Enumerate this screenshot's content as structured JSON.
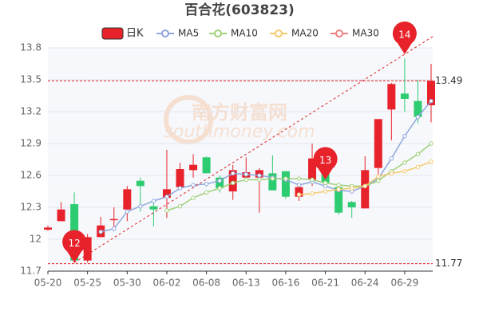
{
  "chart_data": {
    "type": "candlestick",
    "title": "百合花(603823)",
    "watermark": [
      "南方财富网",
      "southmoney.com"
    ],
    "categories": [
      "05-20",
      null,
      null,
      "05-25",
      null,
      null,
      "05-30",
      null,
      null,
      "06-02",
      null,
      null,
      "06-08",
      null,
      null,
      "06-13",
      null,
      null,
      "06-16",
      null,
      null,
      "06-21",
      null,
      null,
      "06-24",
      null,
      null,
      "06-29",
      null,
      null
    ],
    "candle_name": "日K",
    "up_color": "#e8222a",
    "down_color": "#2ecc71",
    "open": [
      12.09,
      12.17,
      12.33,
      11.8,
      12.02,
      12.18,
      12.28,
      12.55,
      12.31,
      12.39,
      12.49,
      12.65,
      12.77,
      12.58,
      12.45,
      12.58,
      12.58,
      12.62,
      12.64,
      12.4,
      12.56,
      12.62,
      12.49,
      12.35,
      12.29,
      12.67,
      13.22,
      13.37,
      13.3,
      13.26
    ],
    "close": [
      12.11,
      12.28,
      11.8,
      12.02,
      12.13,
      12.19,
      12.47,
      12.5,
      12.28,
      12.47,
      12.66,
      12.7,
      12.62,
      12.48,
      12.65,
      12.63,
      12.65,
      12.46,
      12.4,
      12.49,
      12.76,
      12.53,
      12.25,
      12.3,
      12.65,
      13.13,
      13.46,
      13.32,
      13.15,
      13.49
    ],
    "high": [
      12.13,
      12.35,
      12.44,
      12.05,
      12.21,
      12.3,
      12.5,
      12.58,
      12.35,
      12.84,
      12.72,
      12.8,
      12.78,
      12.6,
      12.7,
      12.77,
      12.67,
      12.79,
      12.64,
      12.52,
      12.9,
      12.67,
      12.53,
      12.36,
      12.78,
      13.13,
      13.47,
      13.7,
      13.5,
      13.65
    ],
    "low": [
      12.08,
      12.17,
      11.78,
      11.78,
      12.02,
      12.08,
      12.17,
      12.26,
      12.12,
      12.2,
      12.49,
      12.58,
      12.62,
      12.44,
      12.37,
      12.55,
      12.25,
      12.46,
      12.38,
      12.36,
      12.5,
      12.49,
      12.23,
      12.2,
      12.29,
      12.55,
      12.93,
      13.2,
      13.09,
      13.1
    ],
    "series": [
      {
        "name": "MA5",
        "color": "#8fa6dd",
        "values": [
          null,
          null,
          null,
          null,
          12.07,
          12.1,
          12.26,
          12.31,
          12.36,
          12.4,
          12.48,
          12.51,
          12.52,
          12.55,
          12.62,
          12.61,
          12.6,
          12.58,
          12.56,
          12.51,
          12.54,
          12.5,
          12.46,
          12.45,
          12.5,
          12.57,
          12.76,
          12.97,
          13.15,
          13.3
        ]
      },
      {
        "name": "MA10",
        "color": "#9fd07a",
        "values": [
          null,
          null,
          null,
          null,
          null,
          null,
          null,
          null,
          null,
          12.27,
          12.31,
          12.39,
          12.44,
          12.48,
          12.53,
          12.56,
          12.56,
          12.57,
          12.57,
          12.57,
          12.56,
          12.53,
          12.51,
          12.5,
          12.5,
          12.55,
          12.64,
          12.72,
          12.8,
          12.9
        ]
      },
      {
        "name": "MA20",
        "color": "#f5c96b",
        "values": [
          null,
          null,
          null,
          null,
          null,
          null,
          null,
          null,
          null,
          null,
          null,
          null,
          null,
          null,
          null,
          null,
          null,
          null,
          null,
          12.42,
          12.43,
          12.45,
          12.47,
          12.48,
          12.5,
          12.59,
          12.62,
          12.64,
          12.68,
          12.73
        ]
      },
      {
        "name": "MA30",
        "color": "#f08080",
        "values": [
          null,
          null,
          null,
          null,
          null,
          null,
          null,
          null,
          null,
          null,
          null,
          null,
          null,
          null,
          null,
          null,
          null,
          null,
          null,
          null,
          null,
          null,
          null,
          null,
          null,
          null,
          null,
          null,
          null,
          null
        ]
      }
    ],
    "markers": [
      {
        "label": "12",
        "index": 2,
        "value": 11.78
      },
      {
        "label": "13",
        "index": 21,
        "value": 12.56
      },
      {
        "label": "14",
        "index": 27,
        "value": 13.74
      }
    ],
    "hlines": [
      {
        "value": 13.49,
        "label": "13.49"
      },
      {
        "value": 11.77,
        "label": "11.77"
      }
    ],
    "ylim": [
      11.7,
      13.8
    ],
    "yticks": [
      11.7,
      12,
      12.3,
      12.6,
      12.9,
      13.2,
      13.5,
      13.8
    ],
    "grid": true
  }
}
